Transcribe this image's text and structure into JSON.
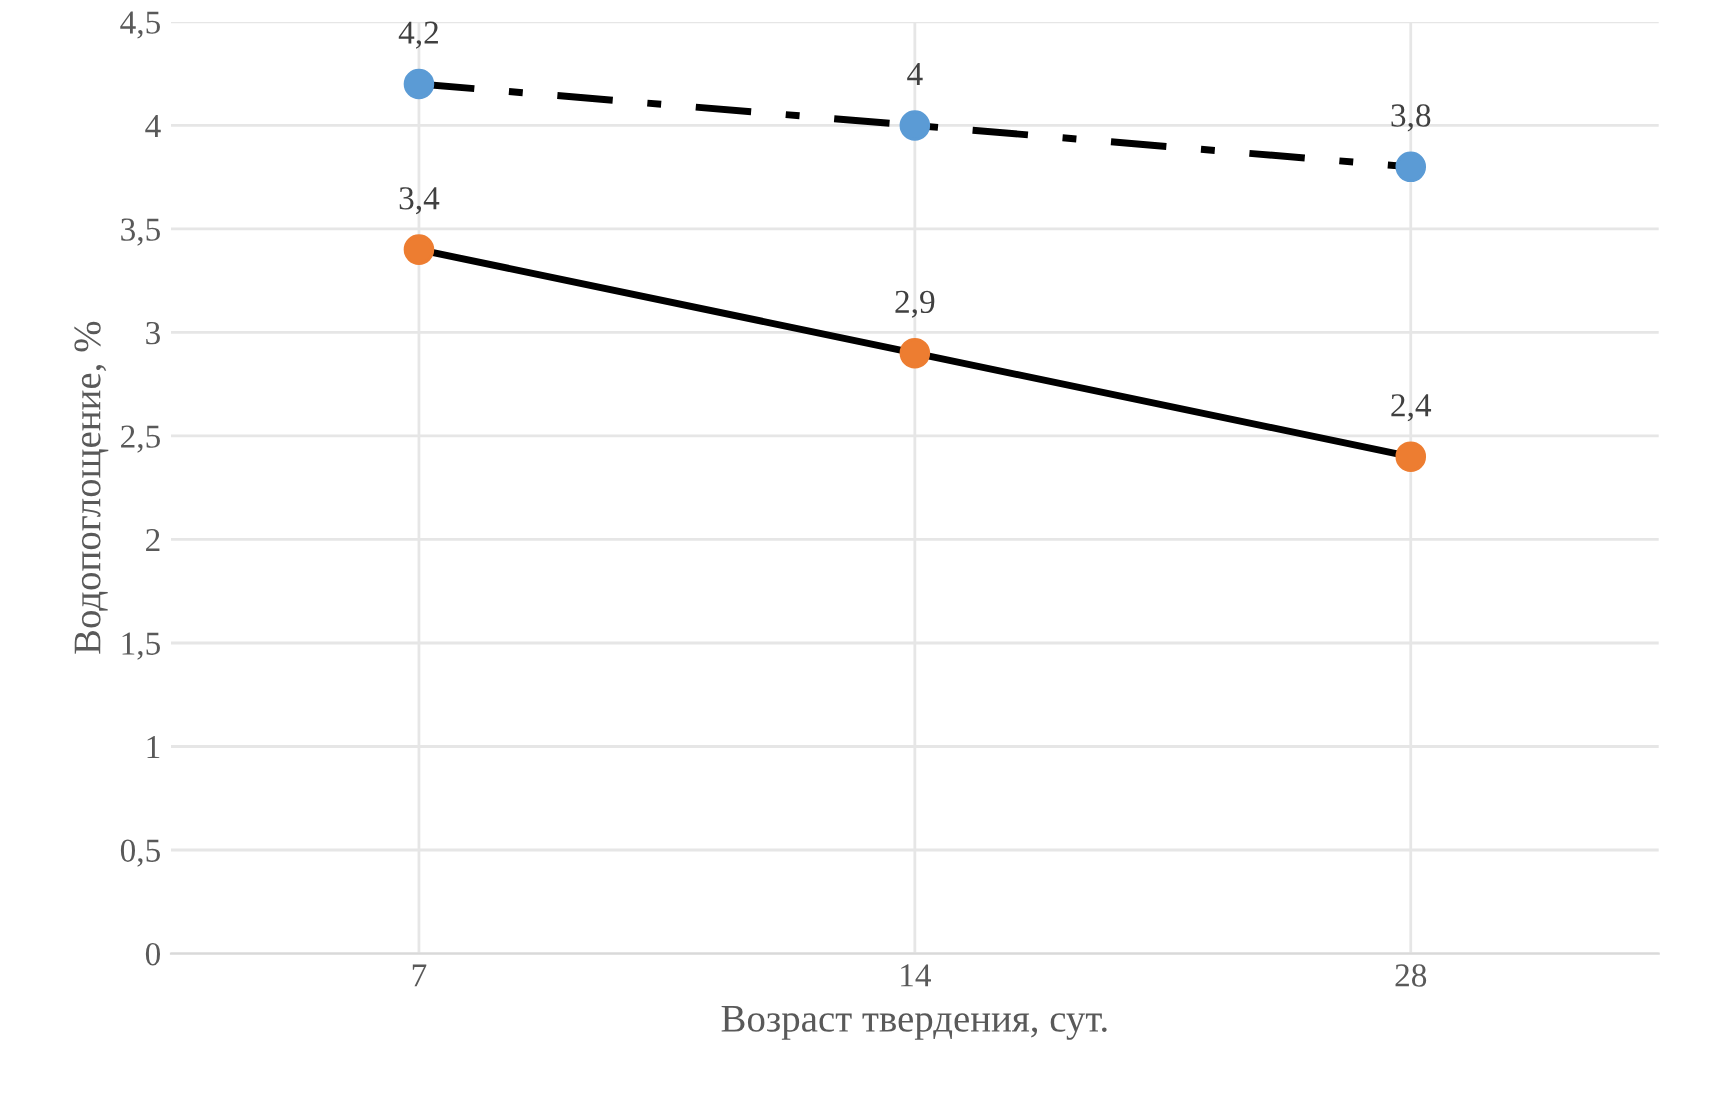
{
  "chart_data": {
    "type": "line",
    "xlabel": "Возраст твердения, сут.",
    "ylabel": "Водопоглощение, %",
    "categories": [
      "7",
      "14",
      "28"
    ],
    "series": [
      {
        "color": "#5b9bd5",
        "line_style": "dashdot",
        "values": [
          4.2,
          4.0,
          3.8
        ],
        "value_labels": [
          "4,2",
          "4",
          "3,8"
        ]
      },
      {
        "color": "#ed7d31",
        "line_style": "solid",
        "values": [
          3.4,
          2.9,
          2.4
        ],
        "value_labels": [
          "3,4",
          "2,9",
          "2,4"
        ]
      }
    ],
    "ylim": [
      0,
      4.5
    ],
    "yticks": [
      0,
      {
        "value": 0.5,
        "label": "0,5"
      },
      1,
      {
        "value": 1.5,
        "label": "1,5"
      },
      2,
      {
        "value": 2.5,
        "label": "2,5"
      },
      3,
      {
        "value": 3.5,
        "label": "3,5"
      },
      4,
      {
        "value": 4.5,
        "label": "4,5"
      }
    ],
    "grid": true,
    "marker": "circle"
  }
}
